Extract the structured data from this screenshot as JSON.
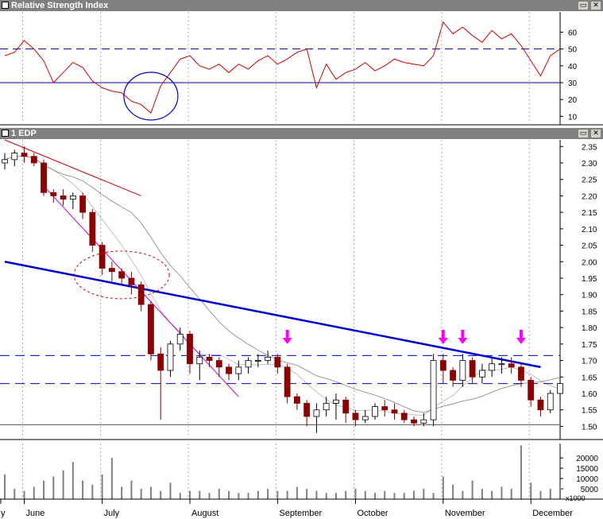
{
  "window": {
    "rsi_title": "Relative Strength Index",
    "price_title": "1 EDP",
    "minimize_glyph": "▭",
    "close_glyph": "✕",
    "volume_multiplier": "x1000"
  },
  "colors": {
    "rsi_line": "#cc0000",
    "candle_up": "#ffffff",
    "candle_down": "#8b0000",
    "trend_blue": "#0000cc",
    "magenta": "#cc00cc",
    "arrow": "#ff00ff",
    "ma_gray": "#808080"
  },
  "chart_data": [
    {
      "type": "line",
      "panel": "rsi",
      "title": "Relative Strength Index",
      "ylim": [
        5,
        72
      ],
      "y_ticks": [
        10,
        20,
        30,
        40,
        50,
        60
      ],
      "reference_lines": [
        {
          "value": 50,
          "style": "dashed"
        },
        {
          "value": 30,
          "style": "solid"
        }
      ],
      "series": [
        {
          "x": [
            "May 27",
            "Jun 1",
            "Jun 4",
            "Jun 8",
            "Jun 11",
            "Jun 15",
            "Jun 18",
            "Jun 22",
            "Jun 25",
            "Jun 29",
            "Jul 2",
            "Jul 6",
            "Jul 9",
            "Jul 13",
            "Jul 16",
            "Jul 20",
            "Jul 23",
            "Jul 27",
            "Jul 30",
            "Aug 3",
            "Aug 6",
            "Aug 10",
            "Aug 13",
            "Aug 17",
            "Aug 20",
            "Aug 24",
            "Aug 27",
            "Aug 31",
            "Sep 3",
            "Sep 7",
            "Sep 10",
            "Sep 14",
            "Sep 17",
            "Sep 21",
            "Sep 24",
            "Sep 28",
            "Oct 1",
            "Oct 5",
            "Oct 8",
            "Oct 12",
            "Oct 15",
            "Oct 19",
            "Oct 22",
            "Oct 26",
            "Oct 29",
            "Nov 2",
            "Nov 5",
            "Nov 9",
            "Nov 12",
            "Nov 16",
            "Nov 19",
            "Nov 23",
            "Nov 26",
            "Nov 30",
            "Dec 3",
            "Dec 7",
            "Dec 10",
            "Dec 14"
          ],
          "values": [
            46,
            48,
            55,
            50,
            43,
            30,
            36,
            42,
            39,
            31,
            27,
            25,
            24,
            19,
            17,
            12,
            28,
            36,
            44,
            46,
            40,
            38,
            41,
            36,
            41,
            38,
            43,
            46,
            41,
            44,
            48,
            50,
            27,
            41,
            32,
            36,
            38,
            42,
            37,
            40,
            44,
            42,
            41,
            40,
            46,
            66,
            59,
            63,
            58,
            54,
            61,
            56,
            59,
            52,
            43,
            34,
            46,
            50
          ]
        }
      ],
      "annotations": [
        {
          "type": "ellipse",
          "near": "Jul 20",
          "color": "#0000cc"
        }
      ]
    },
    {
      "type": "candlestick",
      "panel": "price",
      "title": "1 EDP",
      "ylim": [
        1.46,
        2.37
      ],
      "y_ticks": [
        "1.50",
        "1.55",
        "1.60",
        "1.65",
        "1.70",
        "1.75",
        "1.80",
        "1.85",
        "1.90",
        "1.95",
        "2.00",
        "2.05",
        "2.10",
        "2.15",
        "2.20",
        "2.25",
        "2.30",
        "2.35"
      ],
      "x_labels": [
        "y",
        "June",
        "July",
        "August",
        "September",
        "October",
        "November",
        "December"
      ],
      "series": [
        {
          "x": [
            "May 27",
            "Jun 1",
            "Jun 4",
            "Jun 8",
            "Jun 11",
            "Jun 15",
            "Jun 18",
            "Jun 22",
            "Jun 25",
            "Jun 29",
            "Jul 2",
            "Jul 6",
            "Jul 9",
            "Jul 13",
            "Jul 16",
            "Jul 20",
            "Jul 23",
            "Jul 27",
            "Jul 30",
            "Aug 3",
            "Aug 6",
            "Aug 10",
            "Aug 13",
            "Aug 17",
            "Aug 20",
            "Aug 24",
            "Aug 27",
            "Aug 31",
            "Sep 3",
            "Sep 7",
            "Sep 10",
            "Sep 14",
            "Sep 17",
            "Sep 21",
            "Sep 24",
            "Sep 28",
            "Oct 1",
            "Oct 5",
            "Oct 8",
            "Oct 12",
            "Oct 15",
            "Oct 19",
            "Oct 22",
            "Oct 26",
            "Oct 29",
            "Nov 2",
            "Nov 5",
            "Nov 9",
            "Nov 12",
            "Nov 16",
            "Nov 19",
            "Nov 23",
            "Nov 26",
            "Nov 30",
            "Dec 3",
            "Dec 7",
            "Dec 10",
            "Dec 14"
          ],
          "open": [
            2.3,
            2.31,
            2.33,
            2.32,
            2.3,
            2.21,
            2.2,
            2.19,
            2.2,
            2.15,
            2.05,
            1.98,
            1.97,
            1.95,
            1.93,
            1.87,
            1.72,
            1.67,
            1.75,
            1.78,
            1.69,
            1.71,
            1.7,
            1.68,
            1.66,
            1.68,
            1.7,
            1.7,
            1.71,
            1.68,
            1.59,
            1.57,
            1.53,
            1.55,
            1.57,
            1.58,
            1.54,
            1.52,
            1.53,
            1.56,
            1.55,
            1.54,
            1.52,
            1.51,
            1.52,
            1.7,
            1.67,
            1.64,
            1.7,
            1.65,
            1.67,
            1.69,
            1.69,
            1.68,
            1.64,
            1.58,
            1.55,
            1.6
          ],
          "close": [
            2.31,
            2.33,
            2.32,
            2.3,
            2.21,
            2.2,
            2.19,
            2.2,
            2.15,
            2.05,
            1.98,
            1.97,
            1.95,
            1.93,
            1.87,
            1.72,
            1.67,
            1.75,
            1.78,
            1.69,
            1.71,
            1.7,
            1.68,
            1.66,
            1.68,
            1.7,
            1.7,
            1.71,
            1.68,
            1.59,
            1.57,
            1.53,
            1.55,
            1.57,
            1.58,
            1.54,
            1.52,
            1.53,
            1.56,
            1.55,
            1.54,
            1.52,
            1.51,
            1.52,
            1.7,
            1.67,
            1.64,
            1.7,
            1.65,
            1.67,
            1.69,
            1.69,
            1.68,
            1.64,
            1.58,
            1.55,
            1.6,
            1.63
          ],
          "high": [
            2.33,
            2.34,
            2.35,
            2.33,
            2.31,
            2.22,
            2.22,
            2.21,
            2.21,
            2.16,
            2.06,
            2.0,
            1.98,
            1.97,
            1.94,
            1.88,
            1.74,
            1.76,
            1.8,
            1.79,
            1.73,
            1.72,
            1.71,
            1.69,
            1.7,
            1.71,
            1.72,
            1.73,
            1.72,
            1.69,
            1.6,
            1.58,
            1.57,
            1.59,
            1.6,
            1.59,
            1.55,
            1.55,
            1.57,
            1.58,
            1.57,
            1.55,
            1.53,
            1.54,
            1.72,
            1.72,
            1.68,
            1.72,
            1.71,
            1.69,
            1.71,
            1.71,
            1.71,
            1.69,
            1.65,
            1.59,
            1.61,
            1.64
          ],
          "low": [
            2.28,
            2.29,
            2.3,
            2.29,
            2.2,
            2.18,
            2.17,
            2.16,
            2.13,
            2.03,
            1.96,
            1.94,
            1.93,
            1.9,
            1.85,
            1.7,
            1.52,
            1.65,
            1.73,
            1.66,
            1.64,
            1.68,
            1.65,
            1.64,
            1.64,
            1.66,
            1.68,
            1.69,
            1.66,
            1.57,
            1.55,
            1.5,
            1.48,
            1.53,
            1.52,
            1.51,
            1.5,
            1.51,
            1.52,
            1.53,
            1.52,
            1.51,
            1.5,
            1.5,
            1.5,
            1.63,
            1.62,
            1.62,
            1.63,
            1.63,
            1.65,
            1.66,
            1.66,
            1.62,
            1.56,
            1.53,
            1.54,
            1.58
          ]
        }
      ],
      "overlays": [
        {
          "name": "",
          "type": "trendline",
          "color": "#0000cc",
          "from": [
            "May 27",
            2.0
          ],
          "to": [
            "Dec 7",
            1.68
          ]
        },
        {
          "name": "",
          "type": "trendline",
          "color": "#cc0000",
          "from": [
            "May 27",
            2.37
          ],
          "to": [
            "Jul 16",
            2.2
          ]
        },
        {
          "name": "",
          "type": "trendline",
          "color": "#cc00cc",
          "from": [
            "Jun 11",
            2.23
          ],
          "to": [
            "Aug 20",
            1.59
          ]
        },
        {
          "name": "",
          "type": "level",
          "style": "dashed",
          "value": 1.715
        },
        {
          "name": "",
          "type": "level",
          "style": "dashed",
          "value": 1.63
        },
        {
          "name": "",
          "type": "level",
          "style": "solid",
          "value": 1.505
        }
      ],
      "markers": [
        {
          "type": "arrow-down",
          "x": "Sep 7",
          "value": 1.74
        },
        {
          "type": "arrow-down",
          "x": "Nov 2",
          "value": 1.74
        },
        {
          "type": "arrow-down",
          "x": "Nov 9",
          "value": 1.74
        },
        {
          "type": "arrow-down",
          "x": "Nov 30",
          "value": 1.74
        }
      ]
    },
    {
      "type": "bar",
      "panel": "volume",
      "y_ticks": [
        "20000",
        "15000",
        "10000",
        "5000"
      ],
      "ylim": [
        0,
        27000
      ],
      "values": [
        12000,
        5000,
        4000,
        6000,
        9000,
        11000,
        14000,
        18000,
        9000,
        7000,
        12000,
        20000,
        6000,
        9000,
        5000,
        6000,
        4000,
        8000,
        3000,
        4000,
        4000,
        3000,
        5000,
        4000,
        3000,
        3000,
        4000,
        5000,
        4000,
        4000,
        6000,
        5000,
        4000,
        3000,
        3000,
        4000,
        5000,
        4000,
        3000,
        4000,
        3000,
        3000,
        4000,
        5000,
        3000,
        11000,
        7000,
        4000,
        9000,
        5000,
        4000,
        6000,
        5000,
        26000,
        8000,
        4000,
        5000,
        6000
      ]
    }
  ]
}
